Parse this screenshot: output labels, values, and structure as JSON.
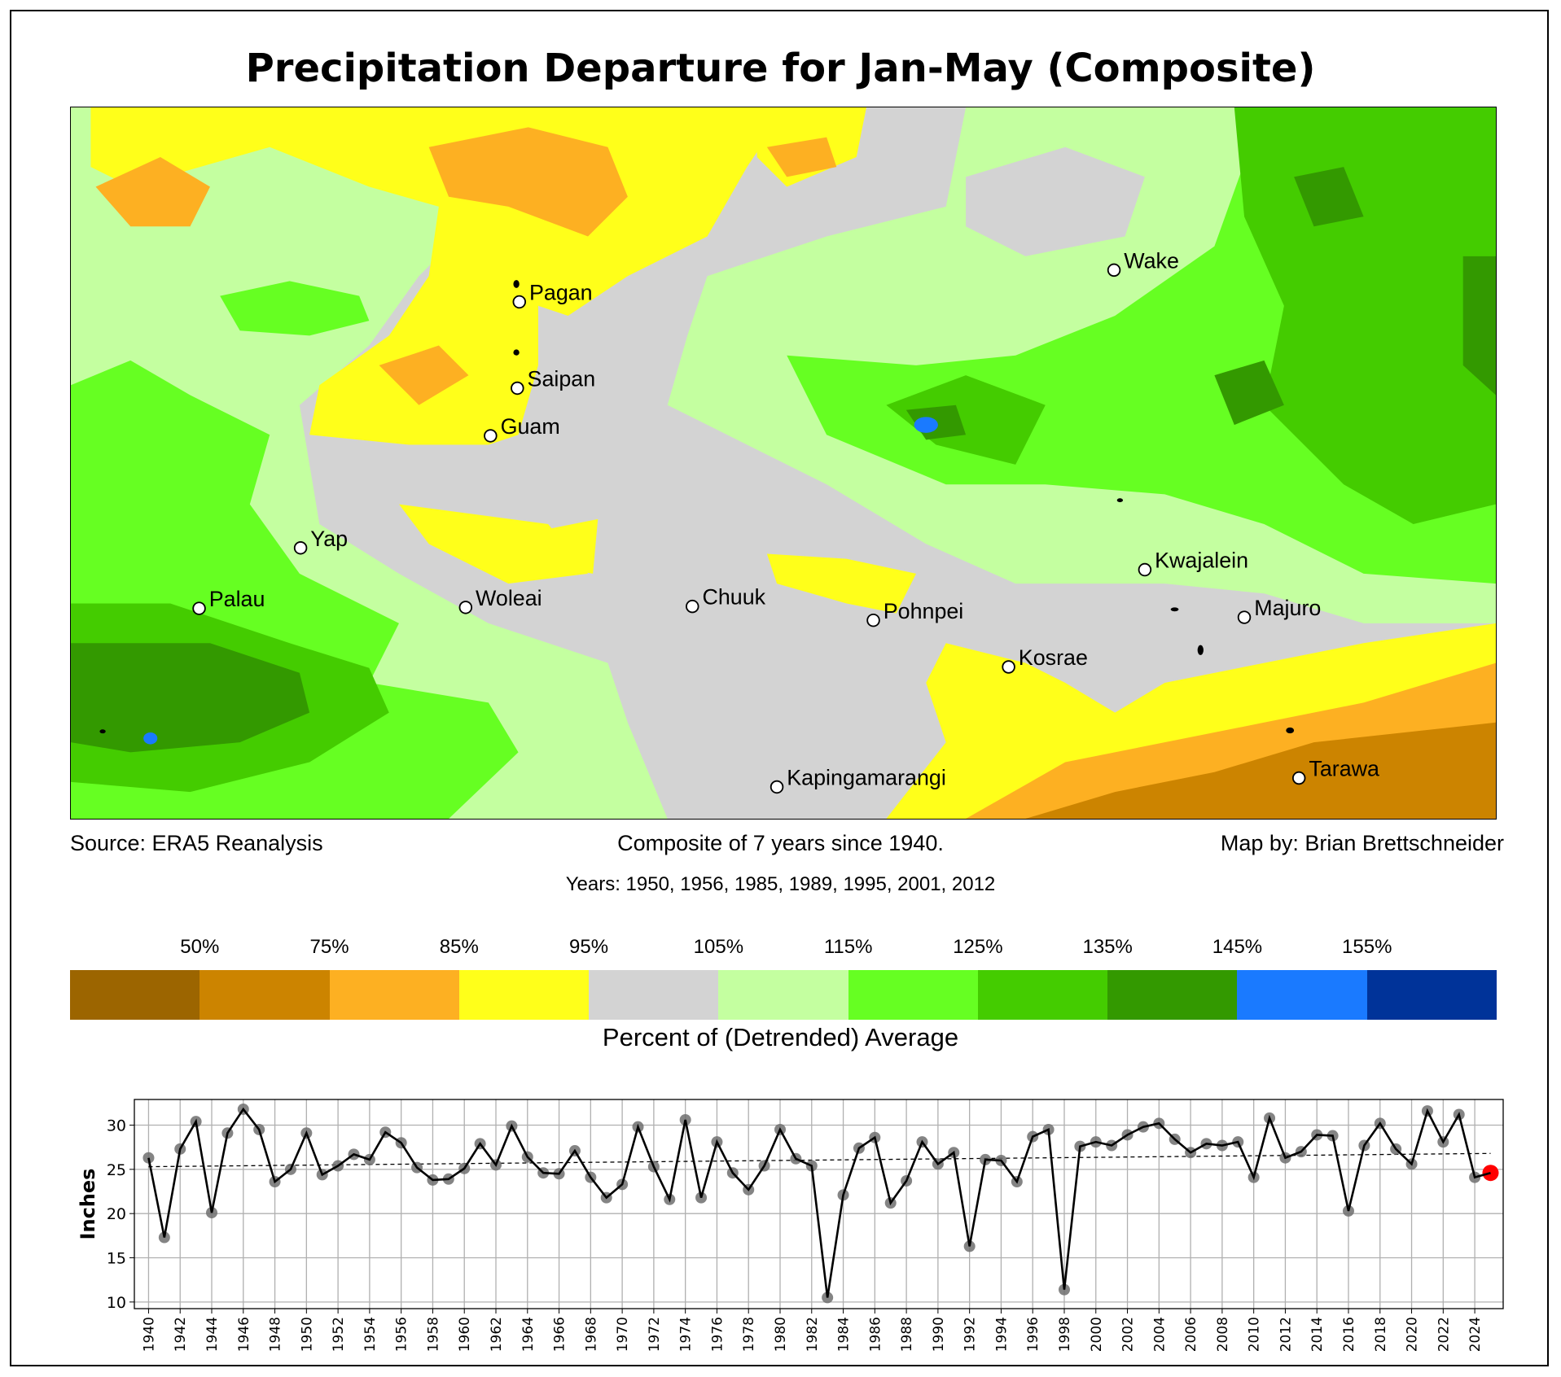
{
  "title": "Precipitation Departure for Jan-May (Composite)",
  "map": {
    "stations": [
      {
        "name": "Pagan"
      },
      {
        "name": "Saipan"
      },
      {
        "name": "Guam"
      },
      {
        "name": "Wake"
      },
      {
        "name": "Yap"
      },
      {
        "name": "Palau"
      },
      {
        "name": "Woleai"
      },
      {
        "name": "Chuuk"
      },
      {
        "name": "Pohnpei"
      },
      {
        "name": "Kosrae"
      },
      {
        "name": "Kwajalein"
      },
      {
        "name": "Majuro"
      },
      {
        "name": "Tarawa"
      },
      {
        "name": "Kapingamarangi"
      }
    ]
  },
  "footer": {
    "source": "Source: ERA5 Reanalysis",
    "composite": "Composite of 7 years since 1940.",
    "credit": "Map by: Brian Brettschneider",
    "years": "Years: 1950, 1956, 1985, 1989, 1995, 2001, 2012"
  },
  "colorbar": {
    "labels": [
      "50%",
      "75%",
      "85%",
      "95%",
      "105%",
      "115%",
      "125%",
      "135%",
      "145%",
      "155%"
    ],
    "colors": [
      "#9c6500",
      "#cc8400",
      "#fdb022",
      "#ffff1a",
      "#d3d3d3",
      "#c4ffa0",
      "#66ff22",
      "#44cc00",
      "#339900",
      "#1a7aff",
      "#003399"
    ],
    "title": "Percent of (Detrended) Average"
  },
  "chart_data": {
    "type": "line",
    "ylabel": "Inches",
    "xlabel": "",
    "ylim": [
      9.25,
      32.9
    ],
    "xlim": [
      1939.1,
      2025.8
    ],
    "yticks": [
      10,
      15,
      20,
      25,
      30
    ],
    "xticks": [
      1940,
      1942,
      1944,
      1946,
      1948,
      1950,
      1952,
      1954,
      1956,
      1958,
      1960,
      1962,
      1964,
      1966,
      1968,
      1970,
      1972,
      1974,
      1976,
      1978,
      1980,
      1982,
      1984,
      1986,
      1988,
      1990,
      1992,
      1994,
      1996,
      1998,
      2000,
      2002,
      2004,
      2006,
      2008,
      2010,
      2012,
      2014,
      2016,
      2018,
      2020,
      2022,
      2024
    ],
    "grid": true,
    "x": [
      1940,
      1941,
      1942,
      1943,
      1944,
      1945,
      1946,
      1947,
      1948,
      1949,
      1950,
      1951,
      1952,
      1953,
      1954,
      1955,
      1956,
      1957,
      1958,
      1959,
      1960,
      1961,
      1962,
      1963,
      1964,
      1965,
      1966,
      1967,
      1968,
      1969,
      1970,
      1971,
      1972,
      1973,
      1974,
      1975,
      1976,
      1977,
      1978,
      1979,
      1980,
      1981,
      1982,
      1983,
      1984,
      1985,
      1986,
      1987,
      1988,
      1989,
      1990,
      1991,
      1992,
      1993,
      1994,
      1995,
      1996,
      1997,
      1998,
      1999,
      2000,
      2001,
      2002,
      2003,
      2004,
      2005,
      2006,
      2007,
      2008,
      2009,
      2010,
      2011,
      2012,
      2013,
      2014,
      2015,
      2016,
      2017,
      2018,
      2019,
      2020,
      2021,
      2022,
      2023,
      2024,
      2025
    ],
    "values": [
      26.3,
      17.3,
      27.3,
      30.4,
      20.1,
      29.1,
      31.8,
      29.5,
      23.6,
      25.0,
      29.1,
      24.4,
      25.4,
      26.7,
      26.1,
      29.2,
      28.0,
      25.2,
      23.8,
      23.9,
      25.1,
      27.9,
      25.5,
      29.9,
      26.4,
      24.6,
      24.5,
      27.1,
      24.1,
      21.8,
      23.3,
      29.8,
      25.3,
      21.6,
      30.6,
      21.8,
      28.1,
      24.6,
      22.7,
      25.4,
      29.5,
      26.2,
      25.4,
      10.5,
      22.1,
      27.4,
      28.6,
      21.2,
      23.7,
      28.1,
      25.6,
      26.9,
      16.3,
      26.1,
      26.0,
      23.6,
      28.7,
      29.5,
      11.4,
      27.6,
      28.1,
      27.7,
      28.9,
      29.8,
      30.2,
      28.4,
      26.9,
      27.9,
      27.7,
      28.1,
      24.1,
      30.8,
      26.3,
      27.0,
      28.9,
      28.8,
      20.3,
      27.7,
      30.2,
      27.3,
      25.6,
      31.6,
      28.1,
      31.2,
      24.1,
      24.6
    ],
    "trend": {
      "x": [
        1940,
        2025
      ],
      "y": [
        25.3,
        26.8
      ]
    },
    "highlight": {
      "x": 2025,
      "color": "#ff0000"
    },
    "marker_color": "#6e6e6e",
    "line_color": "#000000"
  }
}
